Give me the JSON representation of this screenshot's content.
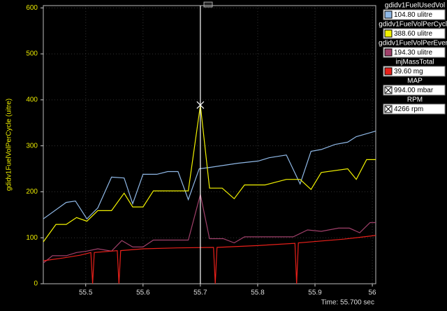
{
  "chart_data": {
    "type": "line",
    "y_axis_label": "gdidv1FuelVolPerCycle (uitre)",
    "time_readout": "Time: 55.700 sec",
    "cursor": 55.7,
    "xlim": [
      55.426,
      56.006
    ],
    "ylim": [
      0,
      605
    ],
    "xticks": [
      55.5,
      55.6,
      55.7,
      55.8,
      55.9,
      56
    ],
    "yticks": [
      0,
      100,
      200,
      300,
      400,
      500,
      600
    ],
    "grid": true,
    "series": [
      {
        "name": "gdidv1FuelUsedVol",
        "readout": "104.80 ulitre",
        "color": "#8fb8e6",
        "x": [
          55.426,
          55.466,
          55.482,
          55.502,
          55.521,
          55.545,
          55.567,
          55.582,
          55.6,
          55.624,
          55.643,
          55.661,
          55.679,
          55.698,
          55.716,
          55.765,
          55.801,
          55.82,
          55.85,
          55.874,
          55.893,
          55.911,
          55.935,
          55.957,
          55.972,
          56.006
        ],
        "values": [
          141,
          177,
          180,
          141,
          165,
          232,
          230,
          174,
          238,
          238,
          244,
          244,
          183,
          250,
          253,
          262,
          267,
          274,
          280,
          217,
          288,
          292,
          303,
          308,
          320,
          332
        ]
      },
      {
        "name": "gdidv1FuelVolPerCycle",
        "readout": "388.60 ulitre",
        "color": "#f2f200",
        "x": [
          55.426,
          55.448,
          55.466,
          55.484,
          55.502,
          55.521,
          55.545,
          55.567,
          55.582,
          55.6,
          55.618,
          55.661,
          55.679,
          55.7,
          55.716,
          55.738,
          55.759,
          55.777,
          55.813,
          55.85,
          55.874,
          55.893,
          55.911,
          55.957,
          55.972,
          55.99,
          56.006
        ],
        "values": [
          91,
          129,
          129,
          144,
          136,
          159,
          159,
          197,
          167,
          167,
          202,
          202,
          202,
          388.6,
          208,
          208,
          185,
          215,
          215,
          227,
          227,
          205,
          242,
          250,
          227,
          270,
          270
        ]
      },
      {
        "name": "gdidv1FuelVolPerEvent",
        "readout": "194.30 ulitre",
        "color": "#a0406a",
        "x": [
          55.426,
          55.442,
          55.466,
          55.484,
          55.502,
          55.521,
          55.545,
          55.563,
          55.582,
          55.6,
          55.618,
          55.679,
          55.7,
          55.716,
          55.74,
          55.759,
          55.777,
          55.862,
          55.887,
          55.911,
          55.941,
          55.96,
          55.978,
          55.996,
          56.006
        ],
        "values": [
          45,
          61,
          61,
          68,
          71,
          76,
          71,
          94,
          80,
          80,
          95,
          95,
          194.3,
          98,
          98,
          89,
          102,
          102,
          117,
          114,
          121,
          121,
          111,
          133,
          133
        ]
      },
      {
        "name": "injMassTotal",
        "readout": "39.60 mg",
        "color": "#e8201a",
        "x": [
          55.426,
          55.46,
          55.49,
          55.509,
          55.512,
          55.515,
          55.555,
          55.558,
          55.561,
          55.6,
          55.66,
          55.723,
          55.726,
          55.729,
          55.8,
          55.865,
          55.868,
          55.871,
          55.95,
          56.006
        ],
        "values": [
          50,
          56,
          62,
          68,
          0,
          68,
          72,
          0,
          72,
          76,
          78,
          79,
          0,
          79,
          83,
          88,
          0,
          89,
          97,
          105
        ]
      }
    ],
    "hidden_channels": [
      {
        "name": "MAP",
        "readout": "994.00 mbar"
      },
      {
        "name": "RPM",
        "readout": "4266 rpm"
      }
    ]
  }
}
